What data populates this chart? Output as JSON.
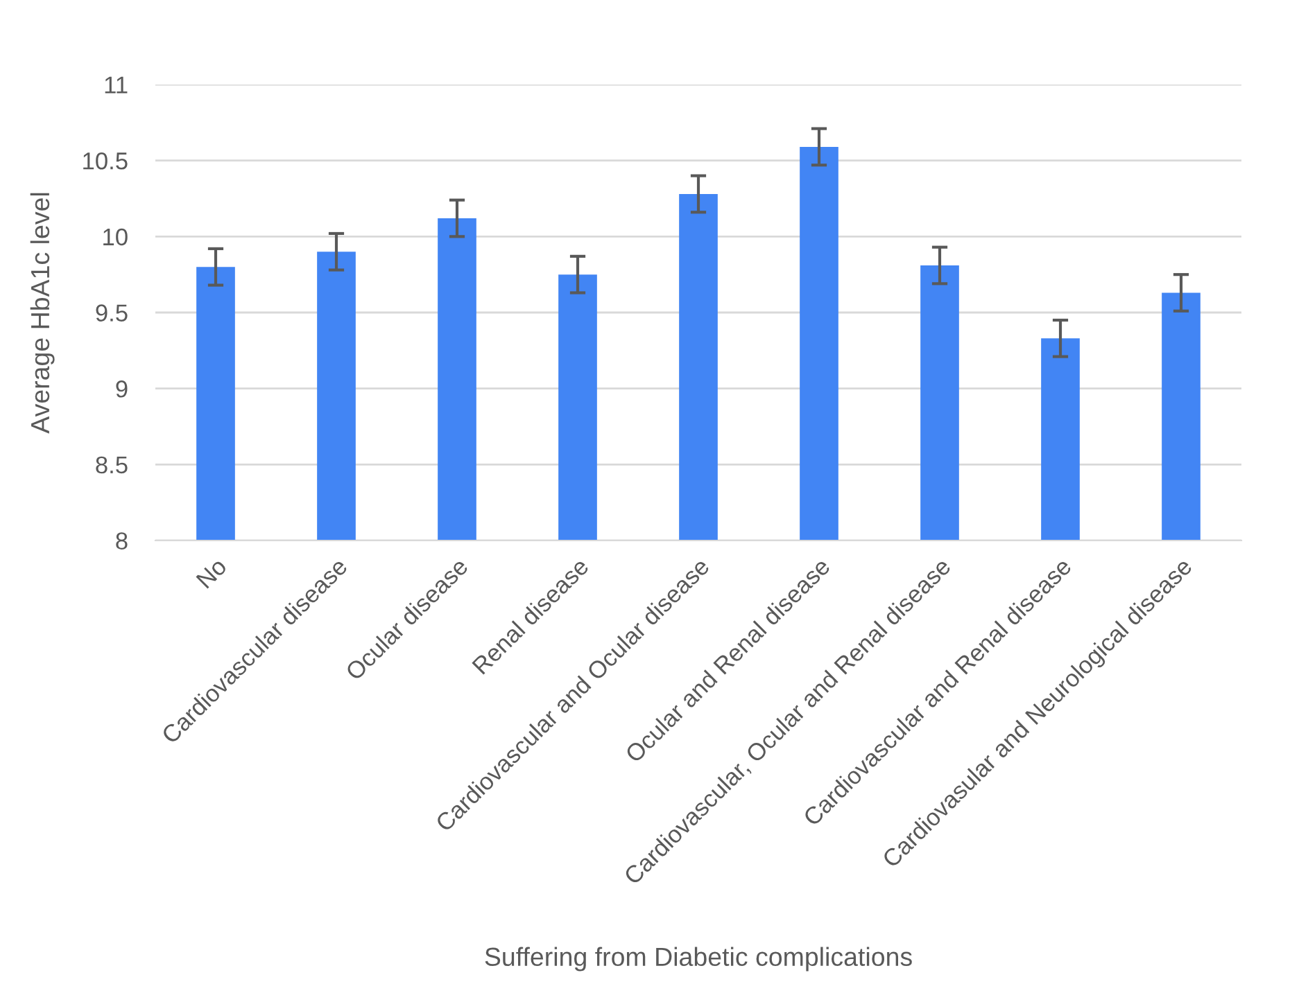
{
  "chart_data": {
    "type": "bar",
    "xlabel": "Suffering from Diabetic complications",
    "ylabel": "Average HbA1c level",
    "categories": [
      "No",
      "Cardiovascular disease",
      "Ocular disease",
      "Renal disease",
      "Cardiovascular and Ocular disease",
      "Ocular and Renal disease",
      "Cardiovascular, Ocular and Renal disease",
      "Cardiovascular and Renal disease",
      "Cardiovasular and Neurological disease"
    ],
    "series": [
      {
        "color": "#4285f4",
        "values": [
          9.8,
          9.9,
          10.12,
          9.75,
          10.28,
          10.59,
          9.81,
          9.33,
          9.63
        ],
        "errors": [
          0.12,
          0.12,
          0.12,
          0.12,
          0.12,
          0.12,
          0.12,
          0.12,
          0.12
        ]
      }
    ],
    "ylim": [
      8,
      11
    ],
    "yticks": [
      8,
      8.5,
      9,
      9.5,
      10,
      10.5,
      11
    ],
    "grid": "y",
    "legend": false
  }
}
